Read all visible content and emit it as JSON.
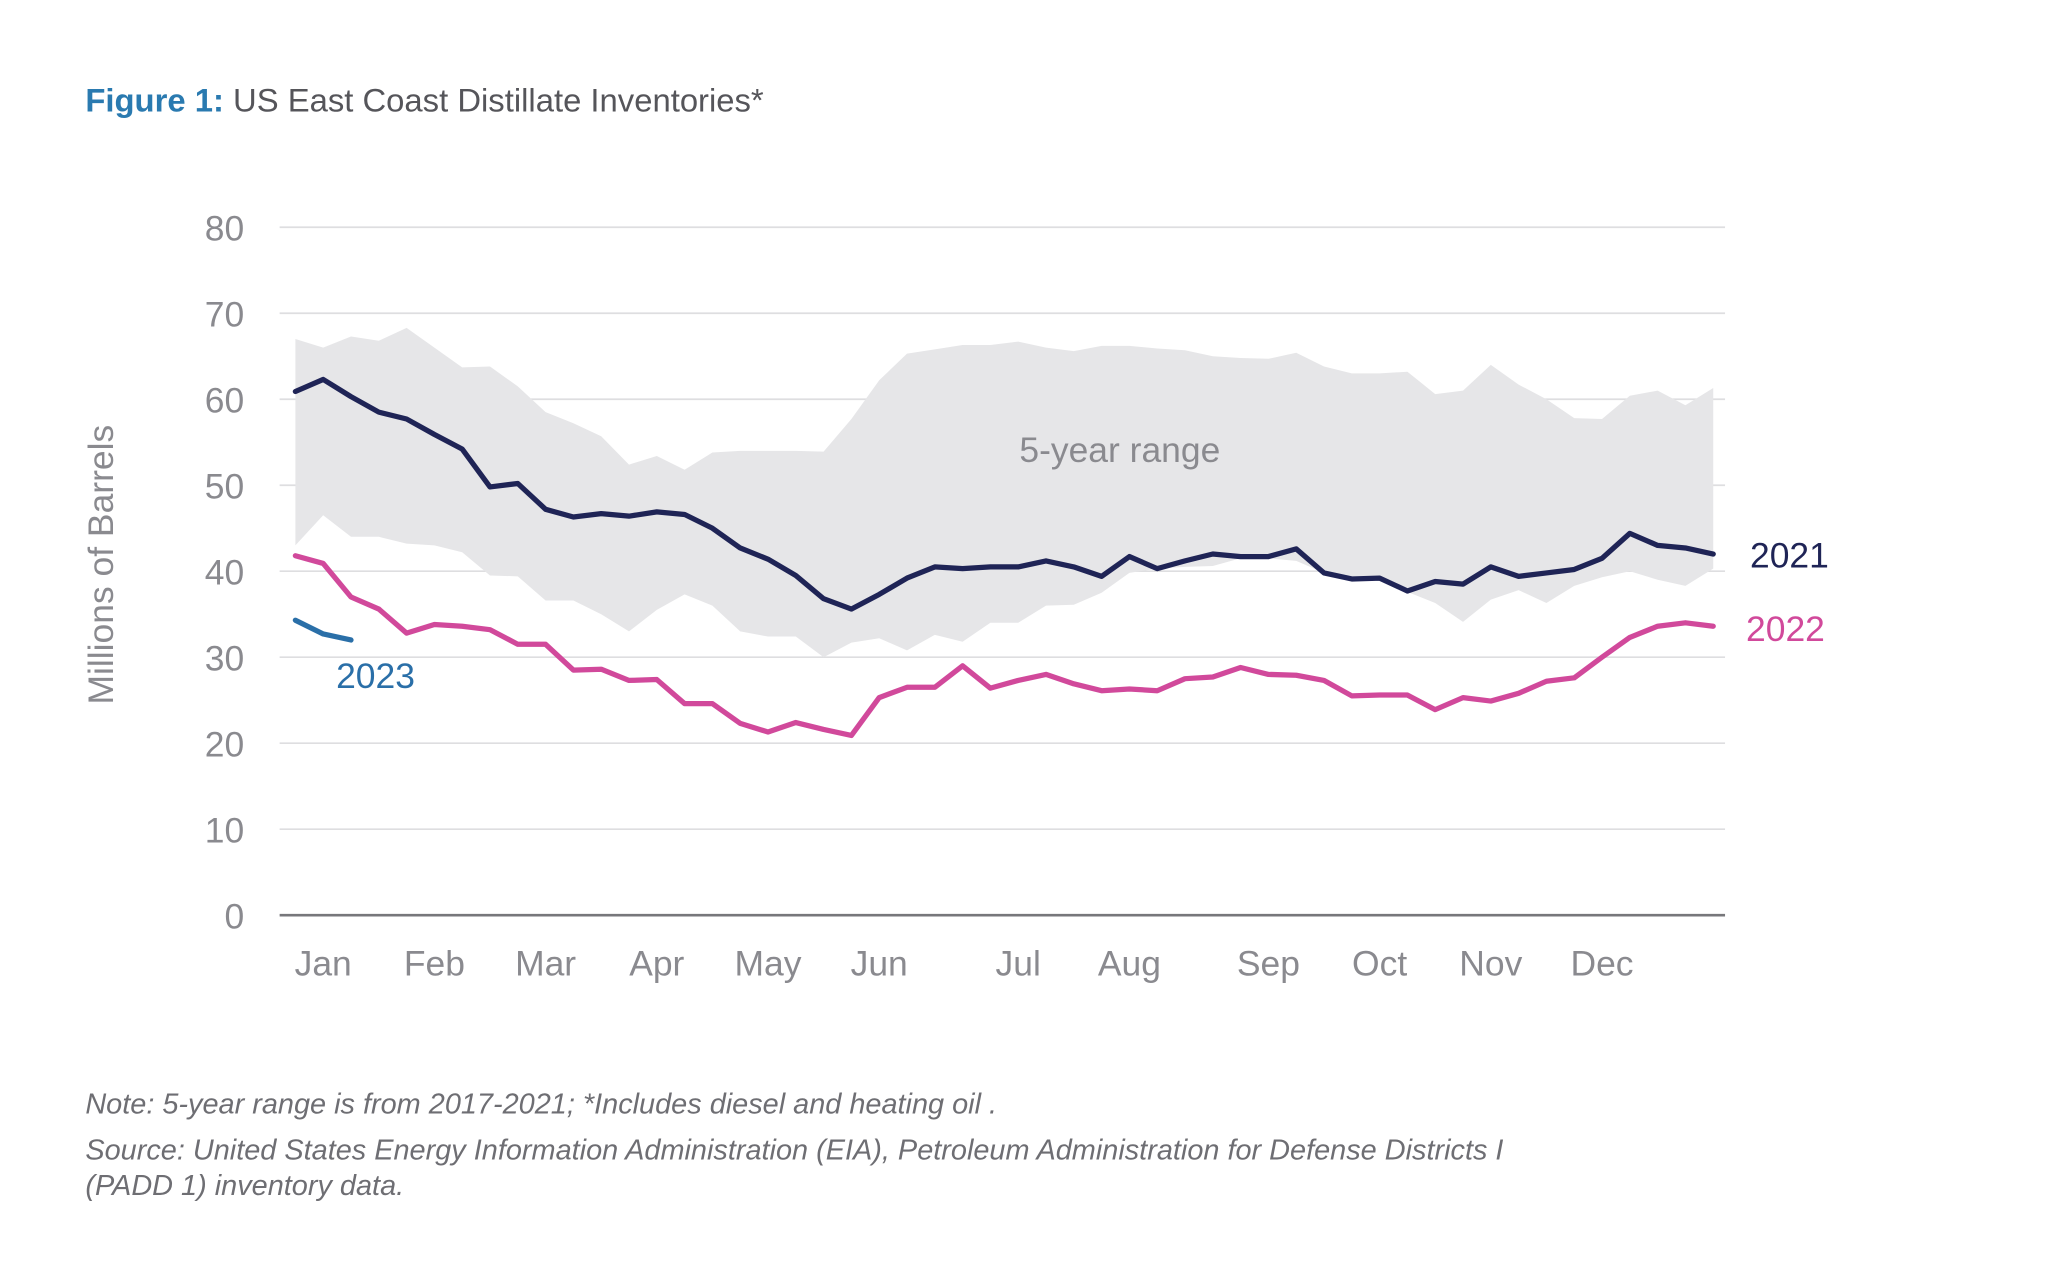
{
  "title": {
    "prefix": "Figure 1:",
    "text": "US East Coast Distillate Inventories*"
  },
  "notes": {
    "note": "Note: 5-year range is from 2017-2021; *Includes diesel and heating oil  .",
    "source_line1": "Source: United States Energy Information Administration (EIA), Petroleum Administration for Defense Districts I",
    "source_line2": "(PADD 1) inventory data."
  },
  "colors": {
    "title_accent": "#2a7ab0",
    "s2021": "#1f2456",
    "s2022": "#d1499b",
    "s2023": "#2a6fa8",
    "range": "#e6e6e8",
    "grid": "#dedee0",
    "axis": "#77777b",
    "text": "#8a8a8f"
  },
  "chart_data": {
    "type": "line",
    "title": "US East Coast Distillate Inventories*",
    "xlabel": "",
    "ylabel": "Millions of Barrels",
    "ylim": [
      0,
      80
    ],
    "yticks": [
      0,
      10,
      20,
      30,
      40,
      50,
      60,
      70,
      80
    ],
    "x_unit": "week of year",
    "xlim": [
      1,
      52
    ],
    "xticks": [
      {
        "label": "Jan",
        "week": 2
      },
      {
        "label": "Feb",
        "week": 6
      },
      {
        "label": "Mar",
        "week": 10
      },
      {
        "label": "Apr",
        "week": 14
      },
      {
        "label": "May",
        "week": 18
      },
      {
        "label": "Jun",
        "week": 22
      },
      {
        "label": "Jul",
        "week": 27
      },
      {
        "label": "Aug",
        "week": 31
      },
      {
        "label": "Sep",
        "week": 36
      },
      {
        "label": "Oct",
        "week": 40
      },
      {
        "label": "Nov",
        "week": 44
      },
      {
        "label": "Dec",
        "week": 48
      }
    ],
    "grid": true,
    "range_band": {
      "name": "5-year range",
      "upper": [
        67,
        66,
        67.3,
        66.8,
        68.3,
        66,
        63.7,
        63.8,
        61.5,
        58.5,
        57.2,
        55.7,
        52.4,
        53.4,
        51.8,
        53.8,
        54.0,
        54.0,
        54.0,
        53.9,
        57.7,
        62.2,
        65.3,
        65.8,
        66.3,
        66.3,
        66.7,
        66.0,
        65.6,
        66.2,
        66.2,
        65.9,
        65.7,
        65.0,
        64.8,
        64.7,
        65.4,
        63.8,
        63.0,
        63.0,
        63.2,
        60.6,
        61.0,
        64.0,
        61.7,
        60.0,
        57.8,
        57.7,
        60.4,
        61.0,
        59.3,
        61.3
      ],
      "lower": [
        43,
        46.5,
        44,
        44,
        43.2,
        43,
        42.2,
        39.5,
        39.4,
        36.6,
        36.6,
        35,
        33,
        35.5,
        37.3,
        36,
        33,
        32.4,
        32.4,
        30,
        31.7,
        32.2,
        30.8,
        32.6,
        31.8,
        34,
        34,
        36,
        36.1,
        37.5,
        39.8,
        40.3,
        40.5,
        40.6,
        41.5,
        41.5,
        41.2,
        39.8,
        39.2,
        39.2,
        37.6,
        36.3,
        34.1,
        36.7,
        37.8,
        36.3,
        38.3,
        39.3,
        40.0,
        39,
        38.3,
        40.3
      ]
    },
    "series": [
      {
        "name": "2021",
        "values": [
          60.9,
          62.3,
          60.3,
          58.5,
          57.7,
          55.9,
          54.2,
          49.8,
          50.2,
          47.2,
          46.3,
          46.7,
          46.4,
          46.9,
          46.6,
          45.0,
          42.7,
          41.4,
          39.5,
          36.8,
          35.6,
          37.3,
          39.2,
          40.5,
          40.3,
          40.5,
          40.5,
          41.2,
          40.5,
          39.4,
          41.7,
          40.3,
          41.2,
          42.0,
          41.7,
          41.7,
          42.6,
          39.8,
          39.1,
          39.2,
          37.7,
          38.8,
          38.5,
          40.5,
          39.4,
          39.8,
          40.2,
          41.5,
          44.4,
          43.0,
          42.7,
          42.0
        ]
      },
      {
        "name": "2022",
        "values": [
          41.8,
          40.9,
          37.0,
          35.6,
          32.8,
          33.8,
          33.6,
          33.2,
          31.5,
          31.5,
          28.5,
          28.6,
          27.3,
          27.4,
          24.6,
          24.6,
          22.3,
          21.3,
          22.4,
          21.6,
          20.9,
          25.3,
          26.5,
          26.5,
          29.0,
          26.4,
          27.3,
          28.0,
          26.9,
          26.1,
          26.3,
          26.1,
          27.5,
          27.7,
          28.8,
          28.0,
          27.9,
          27.3,
          25.5,
          25.6,
          25.6,
          23.9,
          25.3,
          24.9,
          25.8,
          27.2,
          27.6,
          30.0,
          32.3,
          33.6,
          34.0,
          33.6
        ]
      },
      {
        "name": "2023",
        "values": [
          34.3,
          32.7,
          32.0
        ]
      }
    ]
  }
}
